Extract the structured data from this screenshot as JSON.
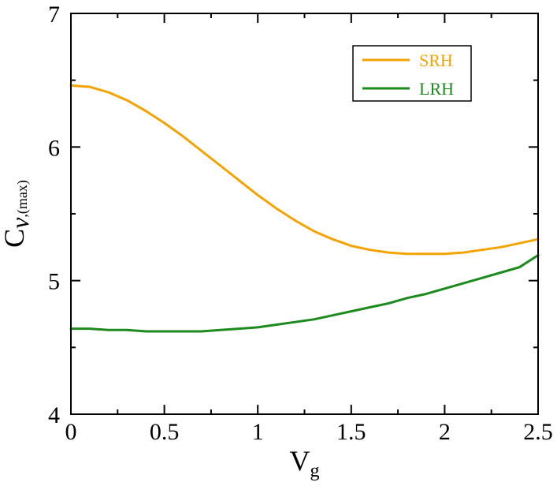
{
  "chart_data": {
    "type": "line",
    "xlabel": {
      "main": "V",
      "sub": "g"
    },
    "ylabel": {
      "main": "C",
      "italic": "v",
      "sub": ",(max)"
    },
    "xlim": [
      0,
      2.5
    ],
    "ylim": [
      4,
      7
    ],
    "xticks": [
      0,
      0.5,
      1,
      1.5,
      2,
      2.5
    ],
    "xtick_labels": [
      "0",
      "0.5",
      "1",
      "1.5",
      "2",
      "2.5"
    ],
    "yticks": [
      4,
      5,
      6,
      7
    ],
    "ytick_labels": [
      "4",
      "5",
      "6",
      "7"
    ],
    "grid": false,
    "legend_position": "top-right",
    "series": [
      {
        "name": "SRH",
        "color": "#F5A300",
        "x": [
          0,
          0.1,
          0.2,
          0.3,
          0.4,
          0.5,
          0.6,
          0.7,
          0.8,
          0.9,
          1.0,
          1.1,
          1.2,
          1.3,
          1.4,
          1.5,
          1.6,
          1.7,
          1.8,
          1.9,
          2.0,
          2.1,
          2.2,
          2.3,
          2.4,
          2.5
        ],
        "y": [
          6.46,
          6.45,
          6.41,
          6.35,
          6.27,
          6.18,
          6.08,
          5.97,
          5.86,
          5.75,
          5.64,
          5.54,
          5.45,
          5.37,
          5.31,
          5.26,
          5.23,
          5.21,
          5.2,
          5.2,
          5.2,
          5.21,
          5.23,
          5.25,
          5.28,
          5.31
        ]
      },
      {
        "name": "LRH",
        "color": "#1C8A1C",
        "x": [
          0,
          0.1,
          0.2,
          0.3,
          0.4,
          0.5,
          0.6,
          0.7,
          0.8,
          0.9,
          1.0,
          1.1,
          1.2,
          1.3,
          1.4,
          1.5,
          1.6,
          1.7,
          1.8,
          1.9,
          2.0,
          2.1,
          2.2,
          2.3,
          2.4,
          2.5
        ],
        "y": [
          4.64,
          4.64,
          4.63,
          4.63,
          4.62,
          4.62,
          4.62,
          4.62,
          4.63,
          4.64,
          4.65,
          4.67,
          4.69,
          4.71,
          4.74,
          4.77,
          4.8,
          4.83,
          4.87,
          4.9,
          4.94,
          4.98,
          5.02,
          5.06,
          5.1,
          5.19
        ]
      }
    ]
  }
}
